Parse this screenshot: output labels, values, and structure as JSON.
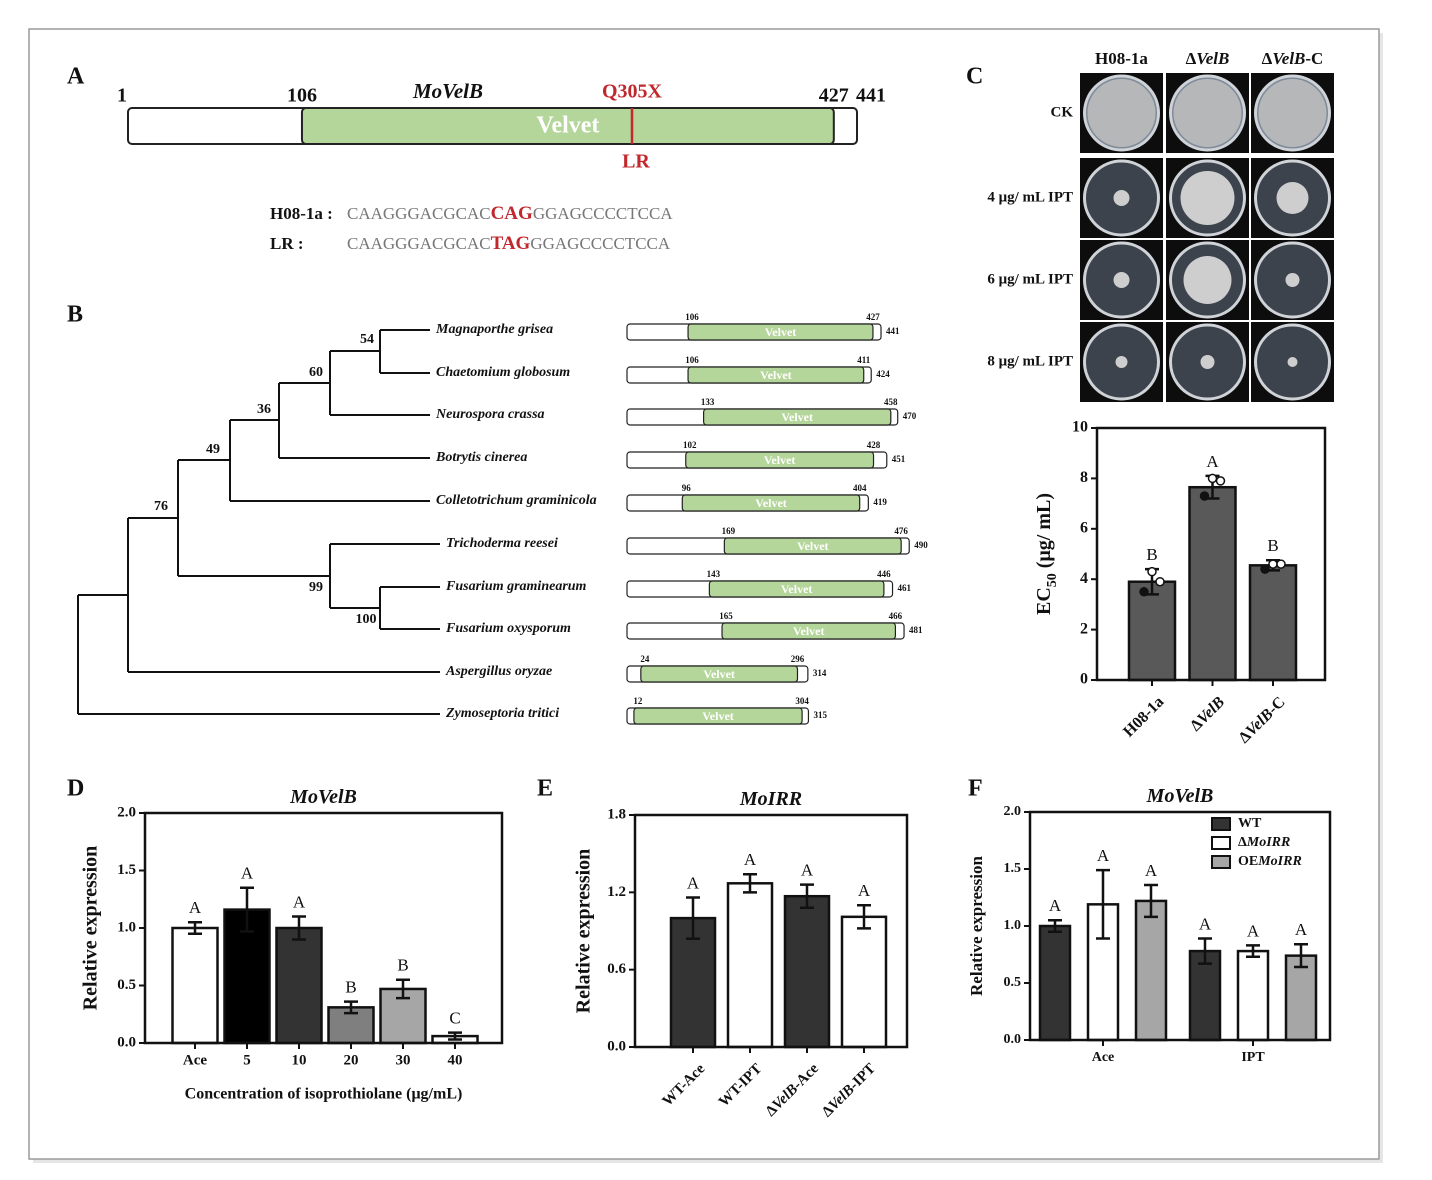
{
  "panel_a": {
    "label": "A",
    "gene": "MoVelB",
    "domain": "Velvet",
    "mutation": "Q305X",
    "mutant": "LR",
    "positions": [
      1,
      106,
      427,
      441
    ],
    "sequences": [
      {
        "name": "H08-1a :",
        "parts": [
          "CAAGGGACGCAC",
          "CAG",
          "GGAGCCCCTCCA"
        ]
      },
      {
        "name": "LR :",
        "parts": [
          "CAAGGGACGCAC",
          "TAG",
          "GGAGCCCCTCCA"
        ]
      }
    ]
  },
  "panel_b": {
    "label": "B",
    "domain": "Velvet",
    "bootstrap": [
      54,
      60,
      36,
      49,
      76,
      99,
      100
    ],
    "species": [
      {
        "name": "Magnaporthe grisea",
        "start": 106,
        "end": 427,
        "length": 441
      },
      {
        "name": "Chaetomium globosum",
        "start": 106,
        "end": 411,
        "length": 424
      },
      {
        "name": "Neurospora crassa",
        "start": 133,
        "end": 458,
        "length": 470
      },
      {
        "name": "Botrytis cinerea",
        "start": 102,
        "end": 428,
        "length": 451
      },
      {
        "name": "Colletotrichum graminicola",
        "start": 96,
        "end": 404,
        "length": 419
      },
      {
        "name": "Trichoderma reesei",
        "start": 169,
        "end": 476,
        "length": 490
      },
      {
        "name": "Fusarium graminearum",
        "start": 143,
        "end": 446,
        "length": 461
      },
      {
        "name": "Fusarium oxysporum",
        "start": 165,
        "end": 466,
        "length": 481
      },
      {
        "name": "Aspergillus oryzae",
        "start": 24,
        "end": 296,
        "length": 314
      },
      {
        "name": "Zymoseptoria tritici",
        "start": 12,
        "end": 304,
        "length": 315
      }
    ]
  },
  "panel_c": {
    "label": "C",
    "columns": [
      "H08-1a",
      [
        "Δ",
        {
          "text": "VelB",
          "italic": true
        }
      ],
      [
        "Δ",
        {
          "text": "VelB",
          "italic": true
        },
        "-C"
      ]
    ],
    "rows": [
      "CK",
      "4 μg/ mL IPT",
      "6 μg/ mL IPT",
      "8 μg/ mL IPT"
    ]
  },
  "chart_data": [
    {
      "type": "bar",
      "ylabel": [
        "EC",
        {
          "text": "50",
          "sub": true
        },
        " (μg/ mL)"
      ],
      "categories": [
        "H08-1a",
        [
          "Δ",
          {
            "text": "VelB",
            "italic": true
          }
        ],
        [
          "Δ",
          {
            "text": "VelB",
            "italic": true
          },
          "-C"
        ]
      ],
      "values": [
        3.9,
        7.65,
        4.55
      ],
      "errors": [
        0.5,
        0.45,
        0.2
      ],
      "letters": [
        "B",
        "A",
        "B"
      ],
      "points": [
        [
          3.5,
          4.3,
          3.9
        ],
        [
          7.3,
          8.0,
          7.9
        ],
        [
          4.4,
          4.6,
          4.6
        ]
      ],
      "colors": [
        "#595959",
        "#595959",
        "#595959"
      ],
      "ylim": [
        0,
        10
      ],
      "yticks": [
        0,
        2,
        4,
        6,
        8,
        10
      ],
      "xtick_rotation": -45
    },
    {
      "type": "bar",
      "label": "D",
      "title": [
        {
          "text": "MoVelB",
          "italic": true
        }
      ],
      "ylabel": "Relative expression",
      "xlabel": "Concentration of isoprothiolane (μg/mL)",
      "categories": [
        "Ace",
        "5",
        "10",
        "20",
        "30",
        "40"
      ],
      "values": [
        1.0,
        1.16,
        1.0,
        0.31,
        0.47,
        0.06
      ],
      "errors": [
        0.05,
        0.19,
        0.1,
        0.05,
        0.08,
        0.03
      ],
      "letters": [
        "A",
        "A",
        "A",
        "B",
        "B",
        "C"
      ],
      "colors": [
        "#ffffff",
        "#000000",
        "#333333",
        "#7f7f7f",
        "#a6a6a6",
        "#ffffff"
      ],
      "ylim": [
        0,
        2
      ],
      "yticks": [
        {
          "value": 0,
          "label": "0.0"
        },
        {
          "value": 0.5,
          "label": "0.5"
        },
        {
          "value": 1,
          "label": "1.0"
        },
        {
          "value": 1.5,
          "label": "1.5"
        },
        {
          "value": 2,
          "label": "2.0"
        }
      ]
    },
    {
      "type": "bar",
      "label": "E",
      "title": [
        {
          "text": "MoIRR",
          "italic": true
        }
      ],
      "ylabel": "Relative expression",
      "categories": [
        "WT-Ace",
        "WT-IPT",
        [
          "Δ",
          {
            "text": "VelB",
            "italic": true
          },
          "-Ace"
        ],
        [
          "Δ",
          {
            "text": "VelB",
            "italic": true
          },
          "-IPT"
        ]
      ],
      "values": [
        1.0,
        1.27,
        1.17,
        1.01
      ],
      "errors": [
        0.16,
        0.07,
        0.09,
        0.09
      ],
      "letters": [
        "A",
        "A",
        "A",
        "A"
      ],
      "colors": [
        "#333333",
        "#ffffff",
        "#333333",
        "#ffffff"
      ],
      "ylim": [
        0,
        1.8
      ],
      "yticks": [
        {
          "value": 0,
          "label": "0.0"
        },
        {
          "value": 0.6,
          "label": "0.6"
        },
        {
          "value": 1.2,
          "label": "1.2"
        },
        {
          "value": 1.8,
          "label": "1.8"
        }
      ],
      "xtick_rotation": -45
    },
    {
      "type": "grouped_bar",
      "label": "F",
      "title": [
        {
          "text": "MoVelB",
          "italic": true
        }
      ],
      "ylabel": "Relative expression",
      "categories": [
        "Ace",
        "IPT"
      ],
      "series": [
        {
          "name": "WT",
          "color": "#333333",
          "values": [
            1.0,
            0.78
          ],
          "errors": [
            0.05,
            0.11
          ],
          "letters": [
            "A",
            "A"
          ]
        },
        {
          "name": [
            "Δ",
            {
              "text": "MoIRR",
              "italic": true
            }
          ],
          "color": "#ffffff",
          "values": [
            1.19,
            0.78
          ],
          "errors": [
            0.3,
            0.05
          ],
          "letters": [
            "A",
            "A"
          ]
        },
        {
          "name": [
            "OE",
            {
              "text": "MoIRR",
              "italic": true
            }
          ],
          "color": "#a6a6a6",
          "values": [
            1.22,
            0.74
          ],
          "errors": [
            0.14,
            0.1
          ],
          "letters": [
            "A",
            "A"
          ]
        }
      ],
      "legend": "upper right",
      "ylim": [
        0,
        2
      ],
      "yticks": [
        {
          "value": 0,
          "label": "0.0"
        },
        {
          "value": 0.5,
          "label": "0.5"
        },
        {
          "value": 1,
          "label": "1.0"
        },
        {
          "value": 1.5,
          "label": "1.5"
        },
        {
          "value": 2,
          "label": "2.0"
        }
      ]
    }
  ]
}
